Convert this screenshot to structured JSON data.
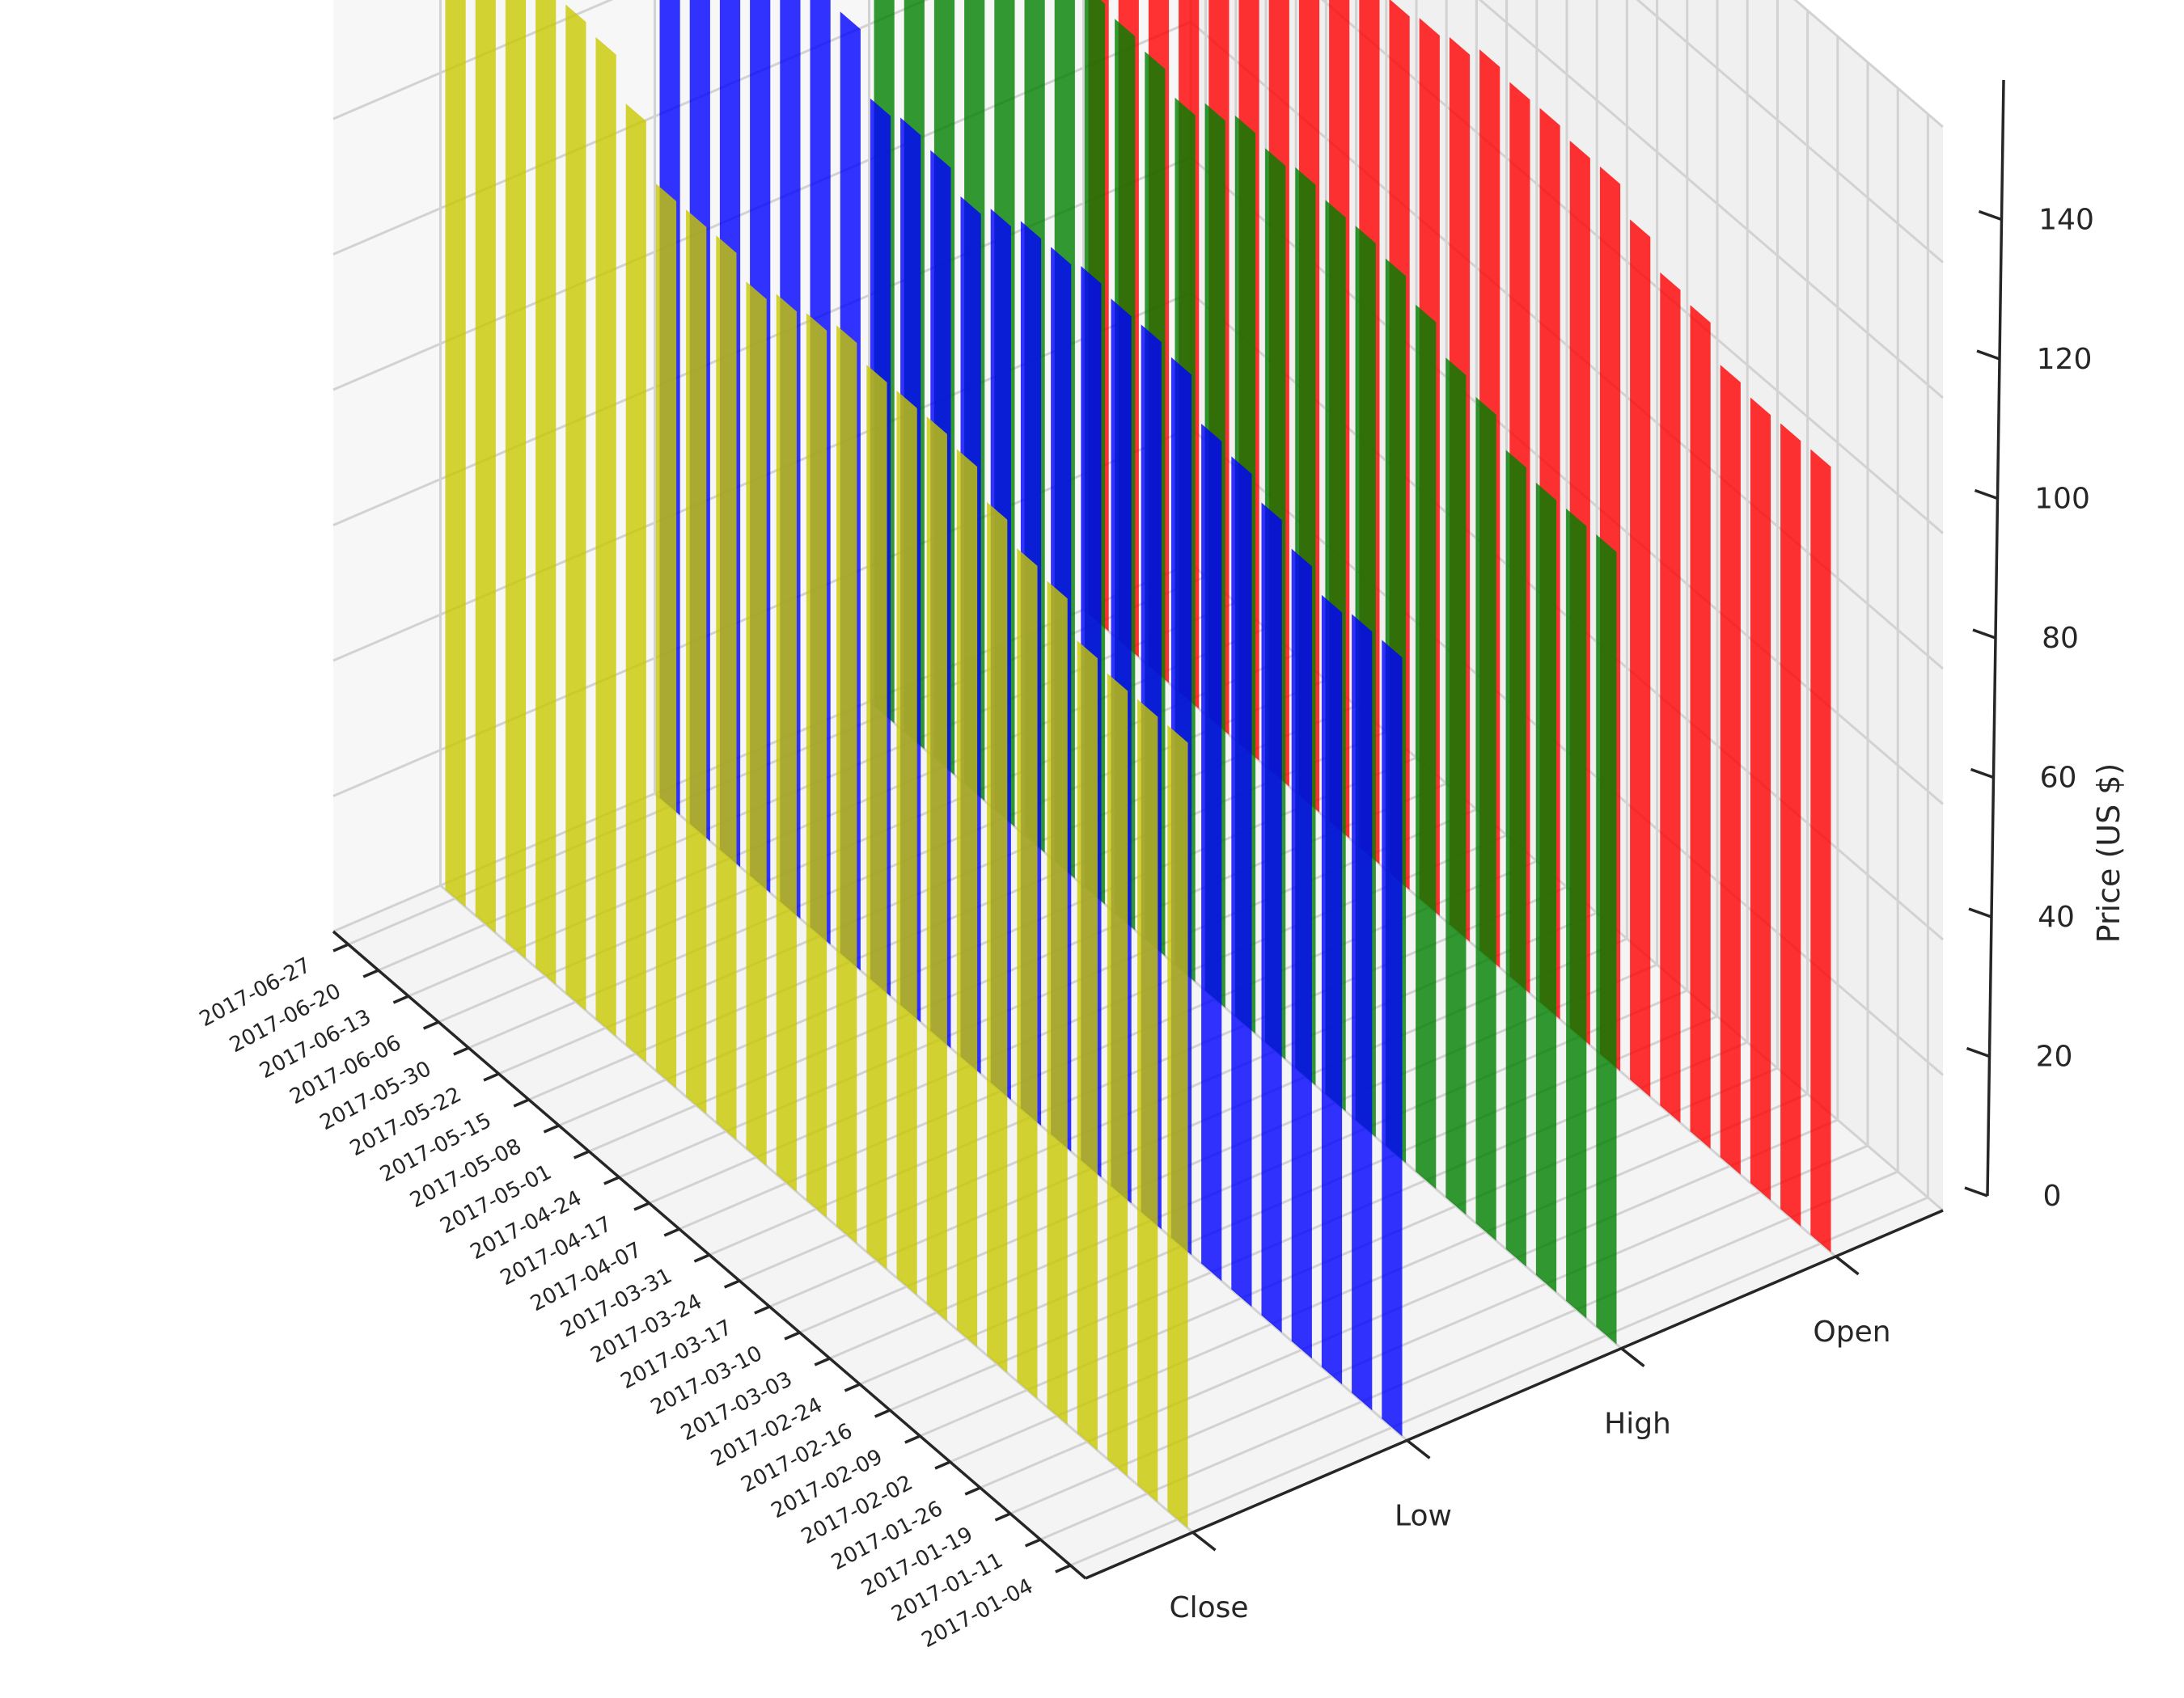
{
  "chart_data": {
    "type": "bar3d",
    "zlabel": "Price (US $)",
    "zlim": [
      0,
      160
    ],
    "z_ticks": [
      0,
      20,
      40,
      60,
      80,
      100,
      120,
      140
    ],
    "grid": true,
    "categories": [
      "Close",
      "Low",
      "High",
      "Open"
    ],
    "x": [
      "2017-01-04",
      "2017-01-11",
      "2017-01-19",
      "2017-01-26",
      "2017-02-02",
      "2017-02-09",
      "2017-02-16",
      "2017-02-24",
      "2017-03-03",
      "2017-03-10",
      "2017-03-17",
      "2017-03-24",
      "2017-03-31",
      "2017-04-07",
      "2017-04-17",
      "2017-04-24",
      "2017-05-01",
      "2017-05-08",
      "2017-05-15",
      "2017-05-22",
      "2017-05-30",
      "2017-06-06",
      "2017-06-13",
      "2017-06-20",
      "2017-06-27"
    ],
    "series": [
      {
        "color": "#c8c800",
        "values": [
          116,
          116,
          116,
          117,
          122,
          123,
          126,
          130,
          131,
          131,
          131,
          133,
          131,
          130,
          128,
          131,
          131,
          131,
          139,
          145,
          146,
          148,
          145,
          143,
          144
        ]
      },
      {
        "color": "#0000ff",
        "values": [
          115,
          115,
          114,
          117,
          120,
          123,
          124,
          130,
          131,
          131,
          132,
          131,
          131,
          129,
          127,
          130,
          131,
          130,
          139,
          143,
          144,
          145,
          142,
          141,
          143
        ]
      },
      {
        "color": "#008000",
        "values": [
          117,
          117,
          117,
          118,
          122,
          124,
          128,
          131,
          132,
          132,
          133,
          132,
          133,
          131,
          128,
          131,
          132,
          133,
          140,
          145,
          147,
          149,
          147,
          144,
          144
        ]
      },
      {
        "color": "#ff0000",
        "values": [
          116,
          116,
          116,
          117,
          122,
          123,
          127,
          131,
          131,
          132,
          132,
          133,
          131,
          130,
          129,
          131,
          132,
          132,
          140,
          145,
          147,
          148,
          145,
          143,
          144
        ]
      }
    ]
  }
}
